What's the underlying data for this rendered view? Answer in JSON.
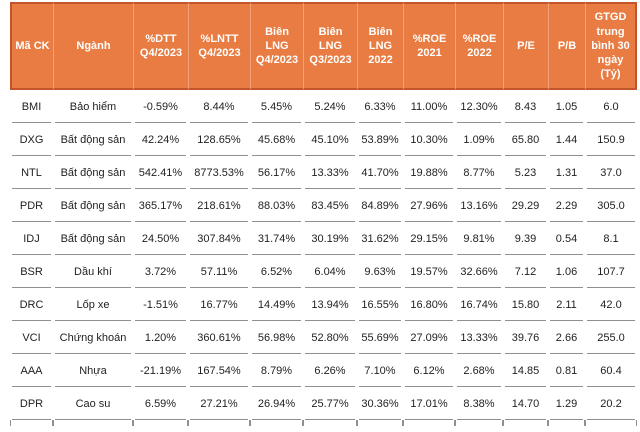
{
  "chart_data": {
    "type": "table",
    "title": "Stock fundamentals comparison table (Vietnamese equities)",
    "colors": {
      "header_background": "#E87C42",
      "header_text": "#FFFFFF",
      "header_divider": "#F2A277",
      "header_outer_border": "#C2552A",
      "row_border": "#8F8F8F",
      "body_text": "#1F1F1F",
      "body_background": "#FFFFFF"
    },
    "columns": [
      {
        "key": "ma_ck",
        "label": "Mã CK"
      },
      {
        "key": "nganh",
        "label": "Ngành"
      },
      {
        "key": "dtt_q4_2023",
        "label": "%DTT\nQ4/2023"
      },
      {
        "key": "lntt_q4_2023",
        "label": "%LNTT\nQ4/2023"
      },
      {
        "key": "bien_lng_q4_2023",
        "label": "Biên\nLNG\nQ4/2023"
      },
      {
        "key": "bien_lng_q3_2023",
        "label": "Biên\nLNG\nQ3/2023"
      },
      {
        "key": "bien_lng_2022",
        "label": "Biên\nLNG\n2022"
      },
      {
        "key": "roe_2021",
        "label": "%ROE\n2021"
      },
      {
        "key": "roe_2022",
        "label": "%ROE\n2022"
      },
      {
        "key": "pe",
        "label": "P/E"
      },
      {
        "key": "pb",
        "label": "P/B"
      },
      {
        "key": "gtgd",
        "label": "GTGD\ntrung\nbình 30\nngày\n(Tỷ)"
      }
    ],
    "rows": [
      [
        "BMI",
        "Bảo hiểm",
        "-0.59%",
        "8.44%",
        "5.45%",
        "5.24%",
        "6.33%",
        "11.00%",
        "12.30%",
        "8.43",
        "1.05",
        "6.0"
      ],
      [
        "DXG",
        "Bất động sản",
        "42.24%",
        "128.65%",
        "45.68%",
        "45.10%",
        "53.89%",
        "10.30%",
        "1.09%",
        "65.80",
        "1.44",
        "150.9"
      ],
      [
        "NTL",
        "Bất động sản",
        "542.41%",
        "8773.53%",
        "56.17%",
        "13.33%",
        "41.70%",
        "19.88%",
        "8.77%",
        "5.23",
        "1.31",
        "37.0"
      ],
      [
        "PDR",
        "Bất động sản",
        "365.17%",
        "218.61%",
        "88.03%",
        "83.45%",
        "84.89%",
        "27.96%",
        "13.16%",
        "29.29",
        "2.29",
        "305.0"
      ],
      [
        "IDJ",
        "Bất động sản",
        "24.50%",
        "307.84%",
        "31.74%",
        "30.19%",
        "31.62%",
        "29.15%",
        "9.81%",
        "9.39",
        "0.54",
        "8.1"
      ],
      [
        "BSR",
        "Dầu khí",
        "3.72%",
        "57.11%",
        "6.52%",
        "6.04%",
        "9.63%",
        "19.57%",
        "32.66%",
        "7.12",
        "1.06",
        "107.7"
      ],
      [
        "DRC",
        "Lốp xe",
        "-1.51%",
        "16.77%",
        "14.49%",
        "13.94%",
        "16.55%",
        "16.80%",
        "16.74%",
        "15.80",
        "2.11",
        "42.0"
      ],
      [
        "VCI",
        "Chứng khoán",
        "1.20%",
        "360.61%",
        "56.98%",
        "52.80%",
        "55.69%",
        "27.09%",
        "13.33%",
        "39.76",
        "2.66",
        "255.0"
      ],
      [
        "AAA",
        "Nhựa",
        "-21.19%",
        "167.54%",
        "8.79%",
        "6.26%",
        "7.10%",
        "6.12%",
        "2.68%",
        "14.85",
        "0.81",
        "60.4"
      ],
      [
        "DPR",
        "Cao su",
        "6.59%",
        "27.21%",
        "26.94%",
        "25.77%",
        "30.36%",
        "17.01%",
        "8.38%",
        "14.70",
        "1.29",
        "20.2"
      ]
    ]
  }
}
